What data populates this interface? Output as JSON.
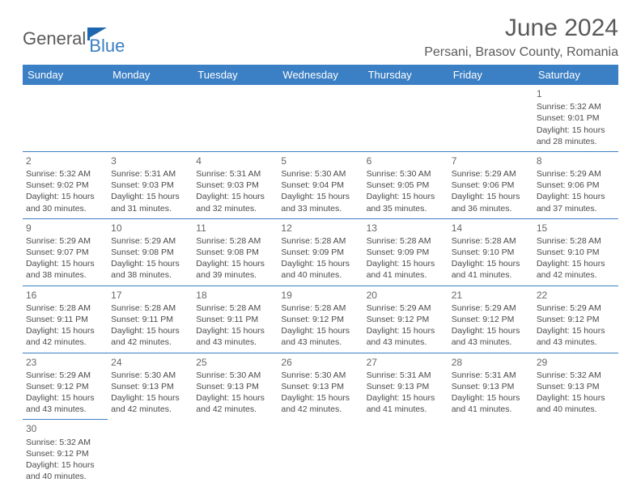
{
  "logo": {
    "text1": "General",
    "text2": "Blue"
  },
  "title": "June 2024",
  "location": "Persani, Brasov County, Romania",
  "colors": {
    "header_bg": "#3b7fc4",
    "header_text": "#ffffff",
    "border": "#3b7fc4",
    "text": "#4a4a4a",
    "title_text": "#5a5a5a"
  },
  "weekdays": [
    "Sunday",
    "Monday",
    "Tuesday",
    "Wednesday",
    "Thursday",
    "Friday",
    "Saturday"
  ],
  "weeks": [
    [
      null,
      null,
      null,
      null,
      null,
      null,
      {
        "n": "1",
        "sr": "Sunrise: 5:32 AM",
        "ss": "Sunset: 9:01 PM",
        "d1": "Daylight: 15 hours",
        "d2": "and 28 minutes."
      }
    ],
    [
      {
        "n": "2",
        "sr": "Sunrise: 5:32 AM",
        "ss": "Sunset: 9:02 PM",
        "d1": "Daylight: 15 hours",
        "d2": "and 30 minutes."
      },
      {
        "n": "3",
        "sr": "Sunrise: 5:31 AM",
        "ss": "Sunset: 9:03 PM",
        "d1": "Daylight: 15 hours",
        "d2": "and 31 minutes."
      },
      {
        "n": "4",
        "sr": "Sunrise: 5:31 AM",
        "ss": "Sunset: 9:03 PM",
        "d1": "Daylight: 15 hours",
        "d2": "and 32 minutes."
      },
      {
        "n": "5",
        "sr": "Sunrise: 5:30 AM",
        "ss": "Sunset: 9:04 PM",
        "d1": "Daylight: 15 hours",
        "d2": "and 33 minutes."
      },
      {
        "n": "6",
        "sr": "Sunrise: 5:30 AM",
        "ss": "Sunset: 9:05 PM",
        "d1": "Daylight: 15 hours",
        "d2": "and 35 minutes."
      },
      {
        "n": "7",
        "sr": "Sunrise: 5:29 AM",
        "ss": "Sunset: 9:06 PM",
        "d1": "Daylight: 15 hours",
        "d2": "and 36 minutes."
      },
      {
        "n": "8",
        "sr": "Sunrise: 5:29 AM",
        "ss": "Sunset: 9:06 PM",
        "d1": "Daylight: 15 hours",
        "d2": "and 37 minutes."
      }
    ],
    [
      {
        "n": "9",
        "sr": "Sunrise: 5:29 AM",
        "ss": "Sunset: 9:07 PM",
        "d1": "Daylight: 15 hours",
        "d2": "and 38 minutes."
      },
      {
        "n": "10",
        "sr": "Sunrise: 5:29 AM",
        "ss": "Sunset: 9:08 PM",
        "d1": "Daylight: 15 hours",
        "d2": "and 38 minutes."
      },
      {
        "n": "11",
        "sr": "Sunrise: 5:28 AM",
        "ss": "Sunset: 9:08 PM",
        "d1": "Daylight: 15 hours",
        "d2": "and 39 minutes."
      },
      {
        "n": "12",
        "sr": "Sunrise: 5:28 AM",
        "ss": "Sunset: 9:09 PM",
        "d1": "Daylight: 15 hours",
        "d2": "and 40 minutes."
      },
      {
        "n": "13",
        "sr": "Sunrise: 5:28 AM",
        "ss": "Sunset: 9:09 PM",
        "d1": "Daylight: 15 hours",
        "d2": "and 41 minutes."
      },
      {
        "n": "14",
        "sr": "Sunrise: 5:28 AM",
        "ss": "Sunset: 9:10 PM",
        "d1": "Daylight: 15 hours",
        "d2": "and 41 minutes."
      },
      {
        "n": "15",
        "sr": "Sunrise: 5:28 AM",
        "ss": "Sunset: 9:10 PM",
        "d1": "Daylight: 15 hours",
        "d2": "and 42 minutes."
      }
    ],
    [
      {
        "n": "16",
        "sr": "Sunrise: 5:28 AM",
        "ss": "Sunset: 9:11 PM",
        "d1": "Daylight: 15 hours",
        "d2": "and 42 minutes."
      },
      {
        "n": "17",
        "sr": "Sunrise: 5:28 AM",
        "ss": "Sunset: 9:11 PM",
        "d1": "Daylight: 15 hours",
        "d2": "and 42 minutes."
      },
      {
        "n": "18",
        "sr": "Sunrise: 5:28 AM",
        "ss": "Sunset: 9:11 PM",
        "d1": "Daylight: 15 hours",
        "d2": "and 43 minutes."
      },
      {
        "n": "19",
        "sr": "Sunrise: 5:28 AM",
        "ss": "Sunset: 9:12 PM",
        "d1": "Daylight: 15 hours",
        "d2": "and 43 minutes."
      },
      {
        "n": "20",
        "sr": "Sunrise: 5:29 AM",
        "ss": "Sunset: 9:12 PM",
        "d1": "Daylight: 15 hours",
        "d2": "and 43 minutes."
      },
      {
        "n": "21",
        "sr": "Sunrise: 5:29 AM",
        "ss": "Sunset: 9:12 PM",
        "d1": "Daylight: 15 hours",
        "d2": "and 43 minutes."
      },
      {
        "n": "22",
        "sr": "Sunrise: 5:29 AM",
        "ss": "Sunset: 9:12 PM",
        "d1": "Daylight: 15 hours",
        "d2": "and 43 minutes."
      }
    ],
    [
      {
        "n": "23",
        "sr": "Sunrise: 5:29 AM",
        "ss": "Sunset: 9:12 PM",
        "d1": "Daylight: 15 hours",
        "d2": "and 43 minutes."
      },
      {
        "n": "24",
        "sr": "Sunrise: 5:30 AM",
        "ss": "Sunset: 9:13 PM",
        "d1": "Daylight: 15 hours",
        "d2": "and 42 minutes."
      },
      {
        "n": "25",
        "sr": "Sunrise: 5:30 AM",
        "ss": "Sunset: 9:13 PM",
        "d1": "Daylight: 15 hours",
        "d2": "and 42 minutes."
      },
      {
        "n": "26",
        "sr": "Sunrise: 5:30 AM",
        "ss": "Sunset: 9:13 PM",
        "d1": "Daylight: 15 hours",
        "d2": "and 42 minutes."
      },
      {
        "n": "27",
        "sr": "Sunrise: 5:31 AM",
        "ss": "Sunset: 9:13 PM",
        "d1": "Daylight: 15 hours",
        "d2": "and 41 minutes."
      },
      {
        "n": "28",
        "sr": "Sunrise: 5:31 AM",
        "ss": "Sunset: 9:13 PM",
        "d1": "Daylight: 15 hours",
        "d2": "and 41 minutes."
      },
      {
        "n": "29",
        "sr": "Sunrise: 5:32 AM",
        "ss": "Sunset: 9:13 PM",
        "d1": "Daylight: 15 hours",
        "d2": "and 40 minutes."
      }
    ],
    [
      {
        "n": "30",
        "sr": "Sunrise: 5:32 AM",
        "ss": "Sunset: 9:12 PM",
        "d1": "Daylight: 15 hours",
        "d2": "and 40 minutes."
      },
      null,
      null,
      null,
      null,
      null,
      null
    ]
  ]
}
